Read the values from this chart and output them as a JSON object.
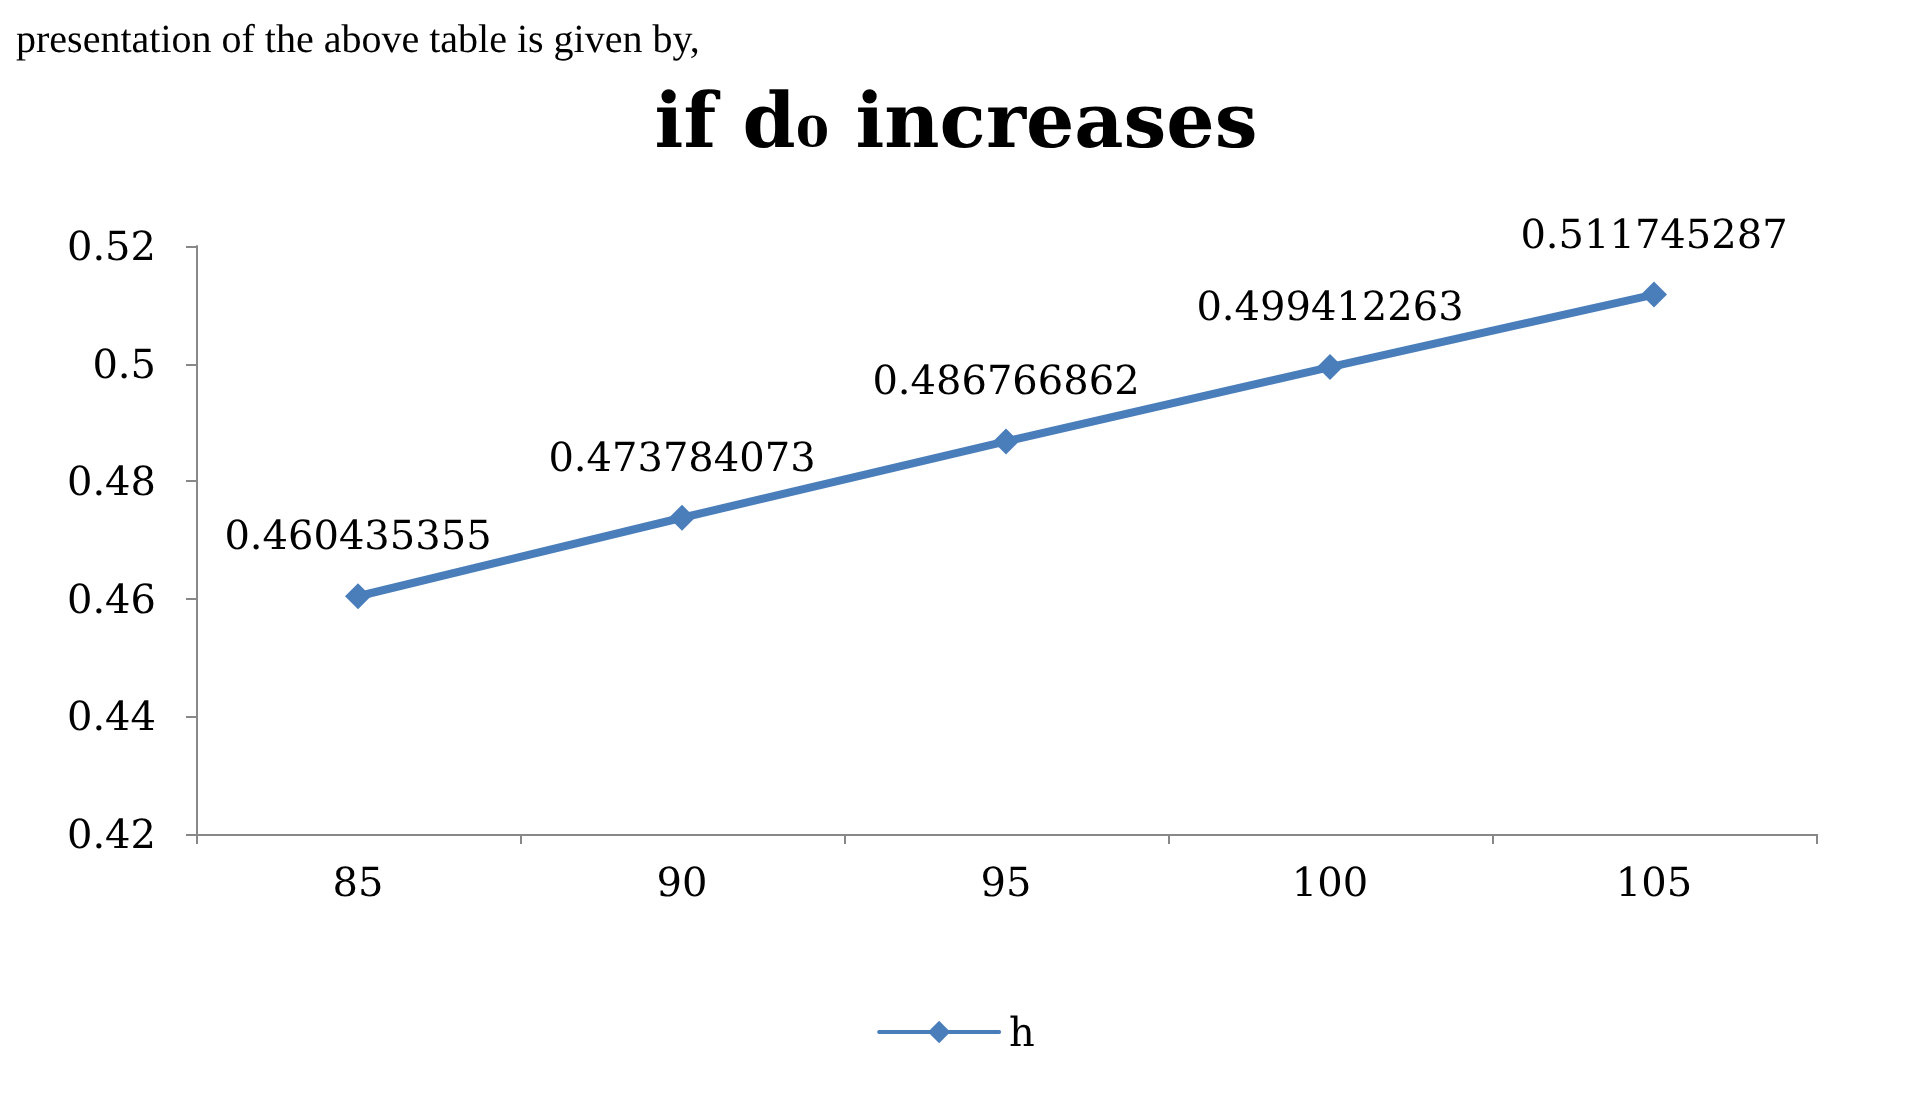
{
  "chart_data": {
    "type": "line",
    "title": "if d₀ increases",
    "annotations": [
      "presentation of the above table is given by,"
    ],
    "categories": [
      "85",
      "90",
      "95",
      "100",
      "105"
    ],
    "series": [
      {
        "name": "h",
        "color": "#4a7ebb",
        "values": [
          0.460435355,
          0.473784073,
          0.486766862,
          0.499412263,
          0.511745287
        ]
      }
    ],
    "ylim": [
      0.42,
      0.52
    ],
    "yticks": [
      0.42,
      0.44,
      0.46,
      0.48,
      0.5,
      0.52
    ],
    "grid": false,
    "legend": "bottom",
    "marker": "diamond",
    "line_style": "solid",
    "data_labels": true
  }
}
